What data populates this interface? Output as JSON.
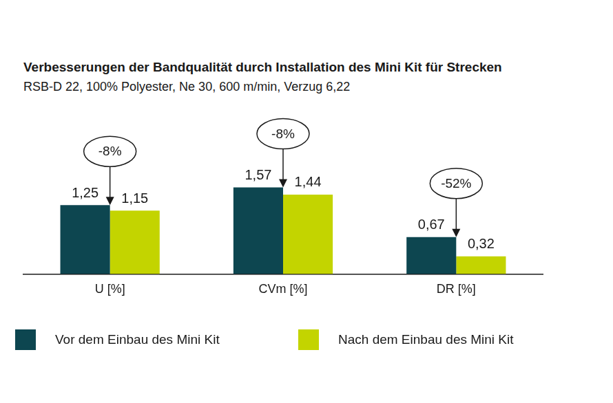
{
  "chart_data": {
    "type": "bar",
    "title": "Verbesserungen der Bandqualität durch Installation des Mini Kit für Strecken",
    "subtitle": "RSB-D 22, 100% Polyester, Ne 30, 600 m/min, Verzug 6,22",
    "categories": [
      "U [%]",
      "CVm [%]",
      "DR [%]"
    ],
    "series": [
      {
        "name": "Vor dem Einbau des Mini Kit",
        "color": "#0d4650",
        "values": [
          1.25,
          1.57,
          0.67
        ],
        "value_labels": [
          "1,25",
          "1,57",
          "0,67"
        ]
      },
      {
        "name": "Nach dem Einbau des Mini Kit",
        "color": "#c3d400",
        "values": [
          1.15,
          1.44,
          0.32
        ],
        "value_labels": [
          "1,15",
          "1,44",
          "0,32"
        ]
      }
    ],
    "annotations": [
      {
        "category": "U [%]",
        "text": "-8%"
      },
      {
        "category": "CVm [%]",
        "text": "-8%"
      },
      {
        "category": "DR [%]",
        "text": "-52%"
      }
    ],
    "ylim": [
      0,
      2.5
    ],
    "grid": false,
    "data_labels": true,
    "tick_labels": "x",
    "legend": "bottom"
  }
}
